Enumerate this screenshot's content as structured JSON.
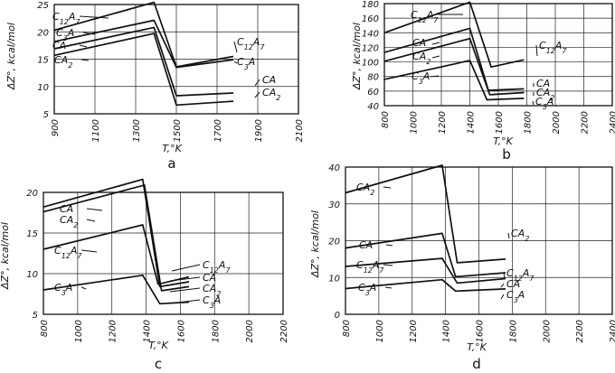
{
  "chart_data": [
    {
      "panel": "a",
      "type": "line",
      "xlabel": "T,°K",
      "ylabel": "ΔZ°, kcal/mol",
      "xlim": [
        900,
        2100
      ],
      "ylim": [
        5,
        25
      ],
      "xticks": [
        "900",
        "1100",
        "1300",
        "1500",
        "1700",
        "1900",
        "2100"
      ],
      "yticks": [
        "5",
        "10",
        "15",
        "20",
        "25"
      ],
      "series": [
        {
          "name": "C12A7",
          "x": [
            900,
            1390,
            1500,
            1780
          ],
          "y": [
            20.3,
            25.4,
            13.6,
            15.5
          ]
        },
        {
          "name": "C3A",
          "x": [
            900,
            1390,
            1500,
            1780
          ],
          "y": [
            18.2,
            22.1,
            13.5,
            14.9
          ]
        },
        {
          "name": "CA",
          "x": [
            900,
            1390,
            1500,
            1780
          ],
          "y": [
            16.9,
            20.8,
            8.3,
            8.8
          ]
        },
        {
          "name": "CA2",
          "x": [
            900,
            1390,
            1500,
            1780
          ],
          "y": [
            15.7,
            19.7,
            6.6,
            7.3
          ]
        }
      ],
      "labels": [
        "C12A7",
        "C3A",
        "CA",
        "CA2",
        "C12A7",
        "C3A",
        "CA",
        "CA2"
      ]
    },
    {
      "panel": "b",
      "type": "line",
      "xlabel": "T,°K",
      "ylabel": "ΔZ°, kcal/mol",
      "xlim": [
        800,
        2400
      ],
      "ylim": [
        40,
        180
      ],
      "xticks": [
        "800",
        "1000",
        "1200",
        "1400",
        "1600",
        "1800",
        "2000",
        "2200",
        "2400"
      ],
      "yticks": [
        "40",
        "60",
        "80",
        "100",
        "120",
        "140",
        "160",
        "180"
      ],
      "series": [
        {
          "name": "C12A7",
          "x": [
            800,
            1400,
            1550,
            1780
          ],
          "y": [
            140,
            182,
            93,
            103
          ]
        },
        {
          "name": "CA",
          "x": [
            800,
            1400,
            1530,
            1780
          ],
          "y": [
            113,
            146,
            61,
            63
          ]
        },
        {
          "name": "CA2",
          "x": [
            800,
            1400,
            1540,
            1780
          ],
          "y": [
            101,
            132,
            55,
            58
          ]
        },
        {
          "name": "C3A",
          "x": [
            800,
            1400,
            1520,
            1780
          ],
          "y": [
            76,
            102,
            48,
            50
          ]
        }
      ],
      "labels": [
        "C12A7",
        "CA",
        "CA2",
        "C3A",
        "C12A7",
        "CA",
        "CA2",
        "C3A"
      ]
    },
    {
      "panel": "c",
      "type": "line",
      "xlabel": "T,°K",
      "ylabel": "ΔZ°, kcal/mol",
      "xlim": [
        800,
        2200
      ],
      "ylim": [
        5,
        20
      ],
      "xticks": [
        "800",
        "1000",
        "1200",
        "1400",
        "1600",
        "1800",
        "2000",
        "2200"
      ],
      "yticks": [
        "5",
        "10",
        "15",
        "20"
      ],
      "series": [
        {
          "name": "CA",
          "x": [
            800,
            1380,
            1480,
            1650
          ],
          "y": [
            18.2,
            21.6,
            8.4,
            9.0
          ]
        },
        {
          "name": "CA2",
          "x": [
            800,
            1390,
            1490,
            1650
          ],
          "y": [
            17.6,
            20.9,
            7.9,
            8.4
          ]
        },
        {
          "name": "C12A7",
          "x": [
            800,
            1380,
            1470,
            1650
          ],
          "y": [
            13.0,
            16.0,
            8.7,
            9.6
          ]
        },
        {
          "name": "C3A",
          "x": [
            800,
            1380,
            1480,
            1650
          ],
          "y": [
            8.0,
            9.8,
            6.3,
            6.5
          ]
        }
      ],
      "labels": [
        "CA",
        "CA2",
        "C12A7",
        "C3A",
        "C12A7",
        "CA",
        "CA2",
        "C3A"
      ]
    },
    {
      "panel": "d",
      "type": "line",
      "xlabel": "T,°K",
      "ylabel": "ΔZ°, kcal/mol",
      "xlim": [
        800,
        2400
      ],
      "ylim": [
        0,
        40
      ],
      "xticks": [
        "800",
        "1000",
        "1200",
        "1400",
        "1600",
        "1800",
        "2000",
        "2200",
        "2400"
      ],
      "yticks": [
        "0",
        "10",
        "20",
        "30",
        "40"
      ],
      "series": [
        {
          "name": "CA2",
          "x": [
            800,
            1380,
            1470,
            1760
          ],
          "y": [
            33,
            40.5,
            14,
            15
          ]
        },
        {
          "name": "CA",
          "x": [
            800,
            1380,
            1460,
            1760
          ],
          "y": [
            18,
            22,
            10.2,
            11.3
          ]
        },
        {
          "name": "C12A7",
          "x": [
            800,
            1380,
            1470,
            1760
          ],
          "y": [
            13,
            15.2,
            8.5,
            9.7
          ]
        },
        {
          "name": "C3A",
          "x": [
            800,
            1380,
            1460,
            1760
          ],
          "y": [
            7,
            9.4,
            6.3,
            6.9
          ]
        }
      ],
      "labels": [
        "CA2",
        "CA",
        "C12A7",
        "C3A",
        "CA2",
        "C12A7",
        "CA",
        "C3A"
      ]
    }
  ],
  "panel_letters": [
    "a",
    "b",
    "c",
    "d"
  ]
}
